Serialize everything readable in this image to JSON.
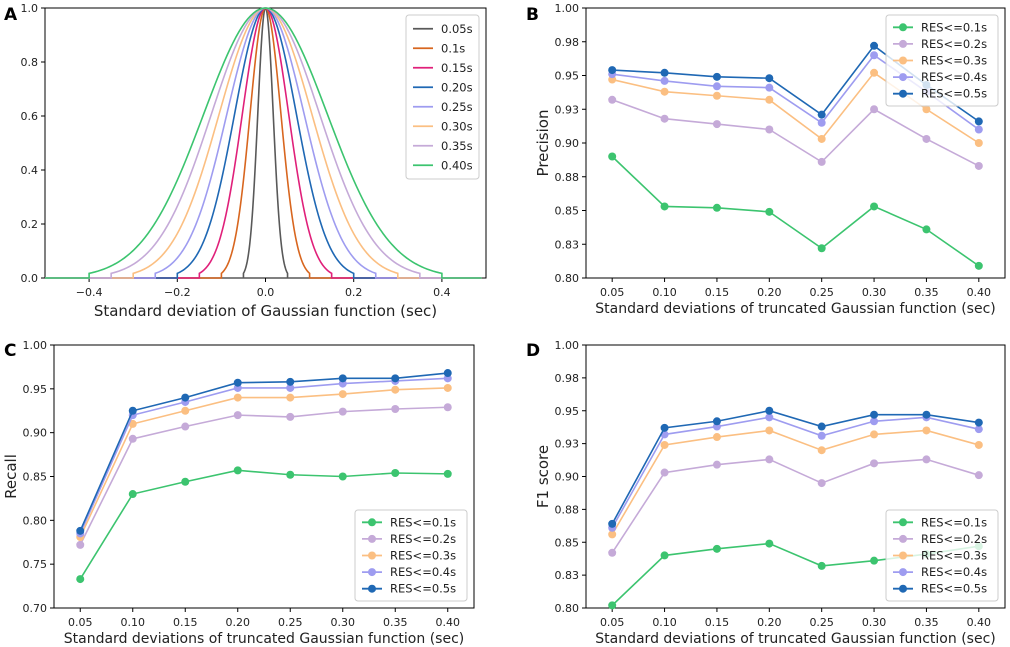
{
  "colors": {
    "res01": "#3cc46f",
    "res02": "#c5aad8",
    "res03": "#fbbf82",
    "res04": "#9e9cf0",
    "res05": "#1f68b4"
  },
  "chart_data": [
    {
      "panel": "A",
      "type": "line",
      "title": "",
      "xlabel": "Standard deviation of Gaussian function (sec)",
      "ylabel": "",
      "xlim": [
        -0.5,
        0.5
      ],
      "ylim": [
        0.0,
        1.0
      ],
      "xticks": [
        -0.4,
        -0.2,
        0.0,
        0.2,
        0.4
      ],
      "xtick_labels": [
        "−0.4",
        "−0.2",
        "0.0",
        "0.2",
        "0.4"
      ],
      "yticks": [
        0.0,
        0.2,
        0.4,
        0.6,
        0.8,
        1.0
      ],
      "ytick_labels": [
        "0.0",
        "0.2",
        "0.4",
        "0.6",
        "0.8",
        "1.0"
      ],
      "legend_position": "top-right",
      "series": [
        {
          "name": "0.05s",
          "sigma": 0.05,
          "color": "#595959"
        },
        {
          "name": "0.1s",
          "sigma": 0.1,
          "color": "#d8661f"
        },
        {
          "name": "0.15s",
          "sigma": 0.15,
          "color": "#e0207a"
        },
        {
          "name": "0.20s",
          "sigma": 0.2,
          "color": "#1f68b4"
        },
        {
          "name": "0.25s",
          "sigma": 0.25,
          "color": "#9e9cf0"
        },
        {
          "name": "0.30s",
          "sigma": 0.3,
          "color": "#fbbf82"
        },
        {
          "name": "0.35s",
          "sigma": 0.35,
          "color": "#c5aad8"
        },
        {
          "name": "0.40s",
          "sigma": 0.4,
          "color": "#3cc46f"
        }
      ]
    },
    {
      "panel": "B",
      "type": "line",
      "title": "",
      "xlabel": "Standard deviations of truncated Gaussian function (sec)",
      "ylabel": "Precision",
      "x": [
        0.05,
        0.1,
        0.15,
        0.2,
        0.25,
        0.3,
        0.35,
        0.4
      ],
      "xtick_labels": [
        "0.05",
        "0.10",
        "0.15",
        "0.20",
        "0.25",
        "0.30",
        "0.35",
        "0.40"
      ],
      "xlim": [
        0.025,
        0.425
      ],
      "ylim": [
        0.8,
        1.0
      ],
      "yticks": [
        0.8,
        0.825,
        0.85,
        0.875,
        0.9,
        0.925,
        0.95,
        0.975,
        1.0
      ],
      "ytick_labels": [
        "0.80",
        "0.83",
        "0.85",
        "0.88",
        "0.90",
        "0.93",
        "0.95",
        "0.98",
        "1.00"
      ],
      "legend_position": "top-right",
      "series": [
        {
          "name": "RES<=0.1s",
          "color": "#3cc46f",
          "values": [
            0.89,
            0.853,
            0.852,
            0.849,
            0.822,
            0.853,
            0.836,
            0.809
          ]
        },
        {
          "name": "RES<=0.2s",
          "color": "#c5aad8",
          "values": [
            0.932,
            0.918,
            0.914,
            0.91,
            0.886,
            0.925,
            0.903,
            0.883
          ]
        },
        {
          "name": "RES<=0.3s",
          "color": "#fbbf82",
          "values": [
            0.947,
            0.938,
            0.935,
            0.932,
            0.903,
            0.952,
            0.925,
            0.9
          ]
        },
        {
          "name": "RES<=0.4s",
          "color": "#9e9cf0",
          "values": [
            0.951,
            0.946,
            0.942,
            0.941,
            0.915,
            0.965,
            0.938,
            0.91
          ]
        },
        {
          "name": "RES<=0.5s",
          "color": "#1f68b4",
          "values": [
            0.954,
            0.952,
            0.949,
            0.948,
            0.921,
            0.972,
            0.943,
            0.916
          ]
        }
      ]
    },
    {
      "panel": "C",
      "type": "line",
      "title": "",
      "xlabel": "Standard deviations of truncated Gaussian function (sec)",
      "ylabel": "Recall",
      "x": [
        0.05,
        0.1,
        0.15,
        0.2,
        0.25,
        0.3,
        0.35,
        0.4
      ],
      "xtick_labels": [
        "0.05",
        "0.10",
        "0.15",
        "0.20",
        "0.25",
        "0.30",
        "0.35",
        "0.40"
      ],
      "xlim": [
        0.025,
        0.425
      ],
      "ylim": [
        0.7,
        1.0
      ],
      "yticks": [
        0.7,
        0.75,
        0.8,
        0.85,
        0.9,
        0.95,
        1.0
      ],
      "ytick_labels": [
        "0.70",
        "0.75",
        "0.80",
        "0.85",
        "0.90",
        "0.95",
        "1.00"
      ],
      "legend_position": "lower-right",
      "series": [
        {
          "name": "RES<=0.1s",
          "color": "#3cc46f",
          "values": [
            0.733,
            0.83,
            0.844,
            0.857,
            0.852,
            0.85,
            0.854,
            0.853
          ]
        },
        {
          "name": "RES<=0.2s",
          "color": "#c5aad8",
          "values": [
            0.772,
            0.893,
            0.907,
            0.92,
            0.918,
            0.924,
            0.927,
            0.929
          ]
        },
        {
          "name": "RES<=0.3s",
          "color": "#fbbf82",
          "values": [
            0.781,
            0.91,
            0.925,
            0.94,
            0.94,
            0.944,
            0.949,
            0.951
          ]
        },
        {
          "name": "RES<=0.4s",
          "color": "#9e9cf0",
          "values": [
            0.785,
            0.92,
            0.935,
            0.951,
            0.951,
            0.956,
            0.959,
            0.962
          ]
        },
        {
          "name": "RES<=0.5s",
          "color": "#1f68b4",
          "values": [
            0.788,
            0.925,
            0.94,
            0.957,
            0.958,
            0.962,
            0.962,
            0.968
          ]
        }
      ]
    },
    {
      "panel": "D",
      "type": "line",
      "title": "",
      "xlabel": "Standard deviations of truncated Gaussian function (sec)",
      "ylabel": "F1 score",
      "x": [
        0.05,
        0.1,
        0.15,
        0.2,
        0.25,
        0.3,
        0.35,
        0.4
      ],
      "xtick_labels": [
        "0.05",
        "0.10",
        "0.15",
        "0.20",
        "0.25",
        "0.30",
        "0.35",
        "0.40"
      ],
      "xlim": [
        0.025,
        0.425
      ],
      "ylim": [
        0.8,
        1.0
      ],
      "yticks": [
        0.8,
        0.825,
        0.85,
        0.875,
        0.9,
        0.925,
        0.95,
        0.975,
        1.0
      ],
      "ytick_labels": [
        "0.80",
        "0.83",
        "0.85",
        "0.88",
        "0.90",
        "0.93",
        "0.95",
        "0.98",
        "1.00"
      ],
      "legend_position": "lower-right",
      "series": [
        {
          "name": "RES<=0.1s",
          "color": "#3cc46f",
          "values": [
            0.802,
            0.84,
            0.845,
            0.849,
            0.832,
            0.836,
            0.841,
            0.847
          ]
        },
        {
          "name": "RES<=0.2s",
          "color": "#c5aad8",
          "values": [
            0.842,
            0.903,
            0.909,
            0.913,
            0.895,
            0.91,
            0.913,
            0.901
          ]
        },
        {
          "name": "RES<=0.3s",
          "color": "#fbbf82",
          "values": [
            0.856,
            0.924,
            0.93,
            0.935,
            0.92,
            0.932,
            0.935,
            0.924
          ]
        },
        {
          "name": "RES<=0.4s",
          "color": "#9e9cf0",
          "values": [
            0.861,
            0.932,
            0.938,
            0.945,
            0.931,
            0.942,
            0.945,
            0.936
          ]
        },
        {
          "name": "RES<=0.5s",
          "color": "#1f68b4",
          "values": [
            0.864,
            0.937,
            0.942,
            0.95,
            0.938,
            0.947,
            0.947,
            0.941
          ]
        }
      ]
    }
  ]
}
